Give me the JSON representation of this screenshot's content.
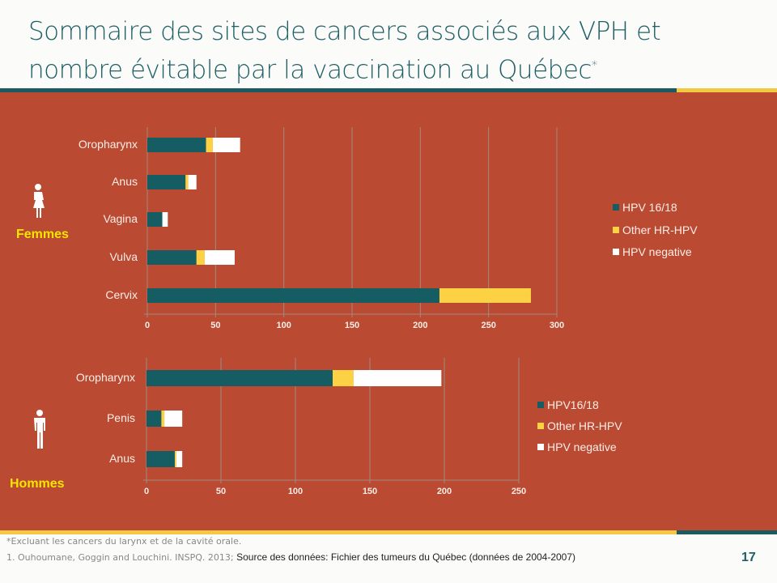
{
  "title": {
    "line1": "Sommaire des sites de cancers associés aux VPH et",
    "line2": "nombre évitable par la vaccination au Québec",
    "marker": "*"
  },
  "colors": {
    "hpv1618": "#165c63",
    "other": "#fcd244",
    "negative": "#ffffff",
    "panel": "#ba4a31"
  },
  "women": {
    "label": "Femmes",
    "icon": "female-person-icon"
  },
  "men": {
    "label": "Hommes",
    "icon": "male-person-icon"
  },
  "chart_data": [
    {
      "type": "bar",
      "orientation": "horizontal",
      "stacked": true,
      "categories": [
        "Oropharynx",
        "Anus",
        "Vagina",
        "Vulva",
        "Cervix"
      ],
      "series": [
        {
          "name": "HPV 16/18",
          "values": [
            43,
            28,
            11,
            36,
            214
          ]
        },
        {
          "name": "Other HR-HPV",
          "values": [
            5,
            2,
            0,
            6,
            67
          ]
        },
        {
          "name": "HPV negative",
          "values": [
            20,
            6,
            4,
            22,
            0
          ]
        }
      ],
      "xlim": [
        0,
        300
      ],
      "xticks": [
        "0",
        "50",
        "100",
        "150",
        "200",
        "250",
        "300"
      ],
      "grid": true,
      "legend": "right"
    },
    {
      "type": "bar",
      "orientation": "horizontal",
      "stacked": true,
      "categories": [
        "Oropharynx",
        "Penis",
        "Anus"
      ],
      "series": [
        {
          "name": "HPV16/18",
          "values": [
            125,
            10,
            19
          ]
        },
        {
          "name": "Other HR-HPV",
          "values": [
            14,
            2,
            1
          ]
        },
        {
          "name": "HPV negative",
          "values": [
            59,
            12,
            4
          ]
        }
      ],
      "xlim": [
        0,
        250
      ],
      "xticks": [
        "0",
        "50",
        "100",
        "150",
        "200",
        "250"
      ],
      "grid": true,
      "legend": "right"
    }
  ],
  "footer": {
    "note": "*Excluant les cancers du larynx et de la cavité orale.",
    "ref": "1. Ouhoumane, Goggin and Louchini. INSPQ. 2013;",
    "source": "Source des données: Fichier des tumeurs du Québec (données de 2004-2007)"
  },
  "page_number": "17"
}
